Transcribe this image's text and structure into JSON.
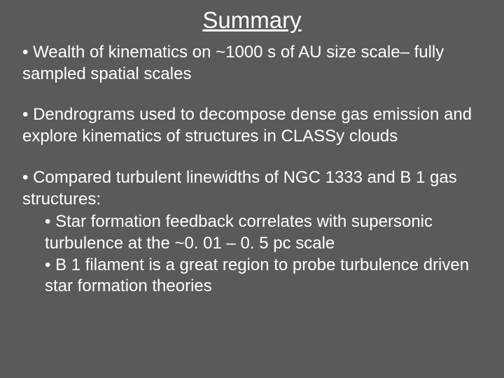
{
  "background_color": "#5a5a5a",
  "text_color": "#ffffff",
  "title": "Summary",
  "title_fontsize": 33,
  "body_fontsize": 24,
  "blocks": [
    {
      "text": "• Wealth of kinematics on ~1000 s of AU size scale– fully sampled spatial scales"
    },
    {
      "text": "• Dendrograms used to decompose dense gas emission and explore kinematics of structures in CLASSy clouds"
    },
    {
      "text": "• Compared turbulent linewidths of NGC 1333 and B 1 gas structures:",
      "sub": [
        "• Star formation feedback correlates with supersonic turbulence at the ~0. 01 – 0. 5 pc scale",
        "• B 1 filament is a great region to probe turbulence driven star formation theories"
      ]
    }
  ]
}
